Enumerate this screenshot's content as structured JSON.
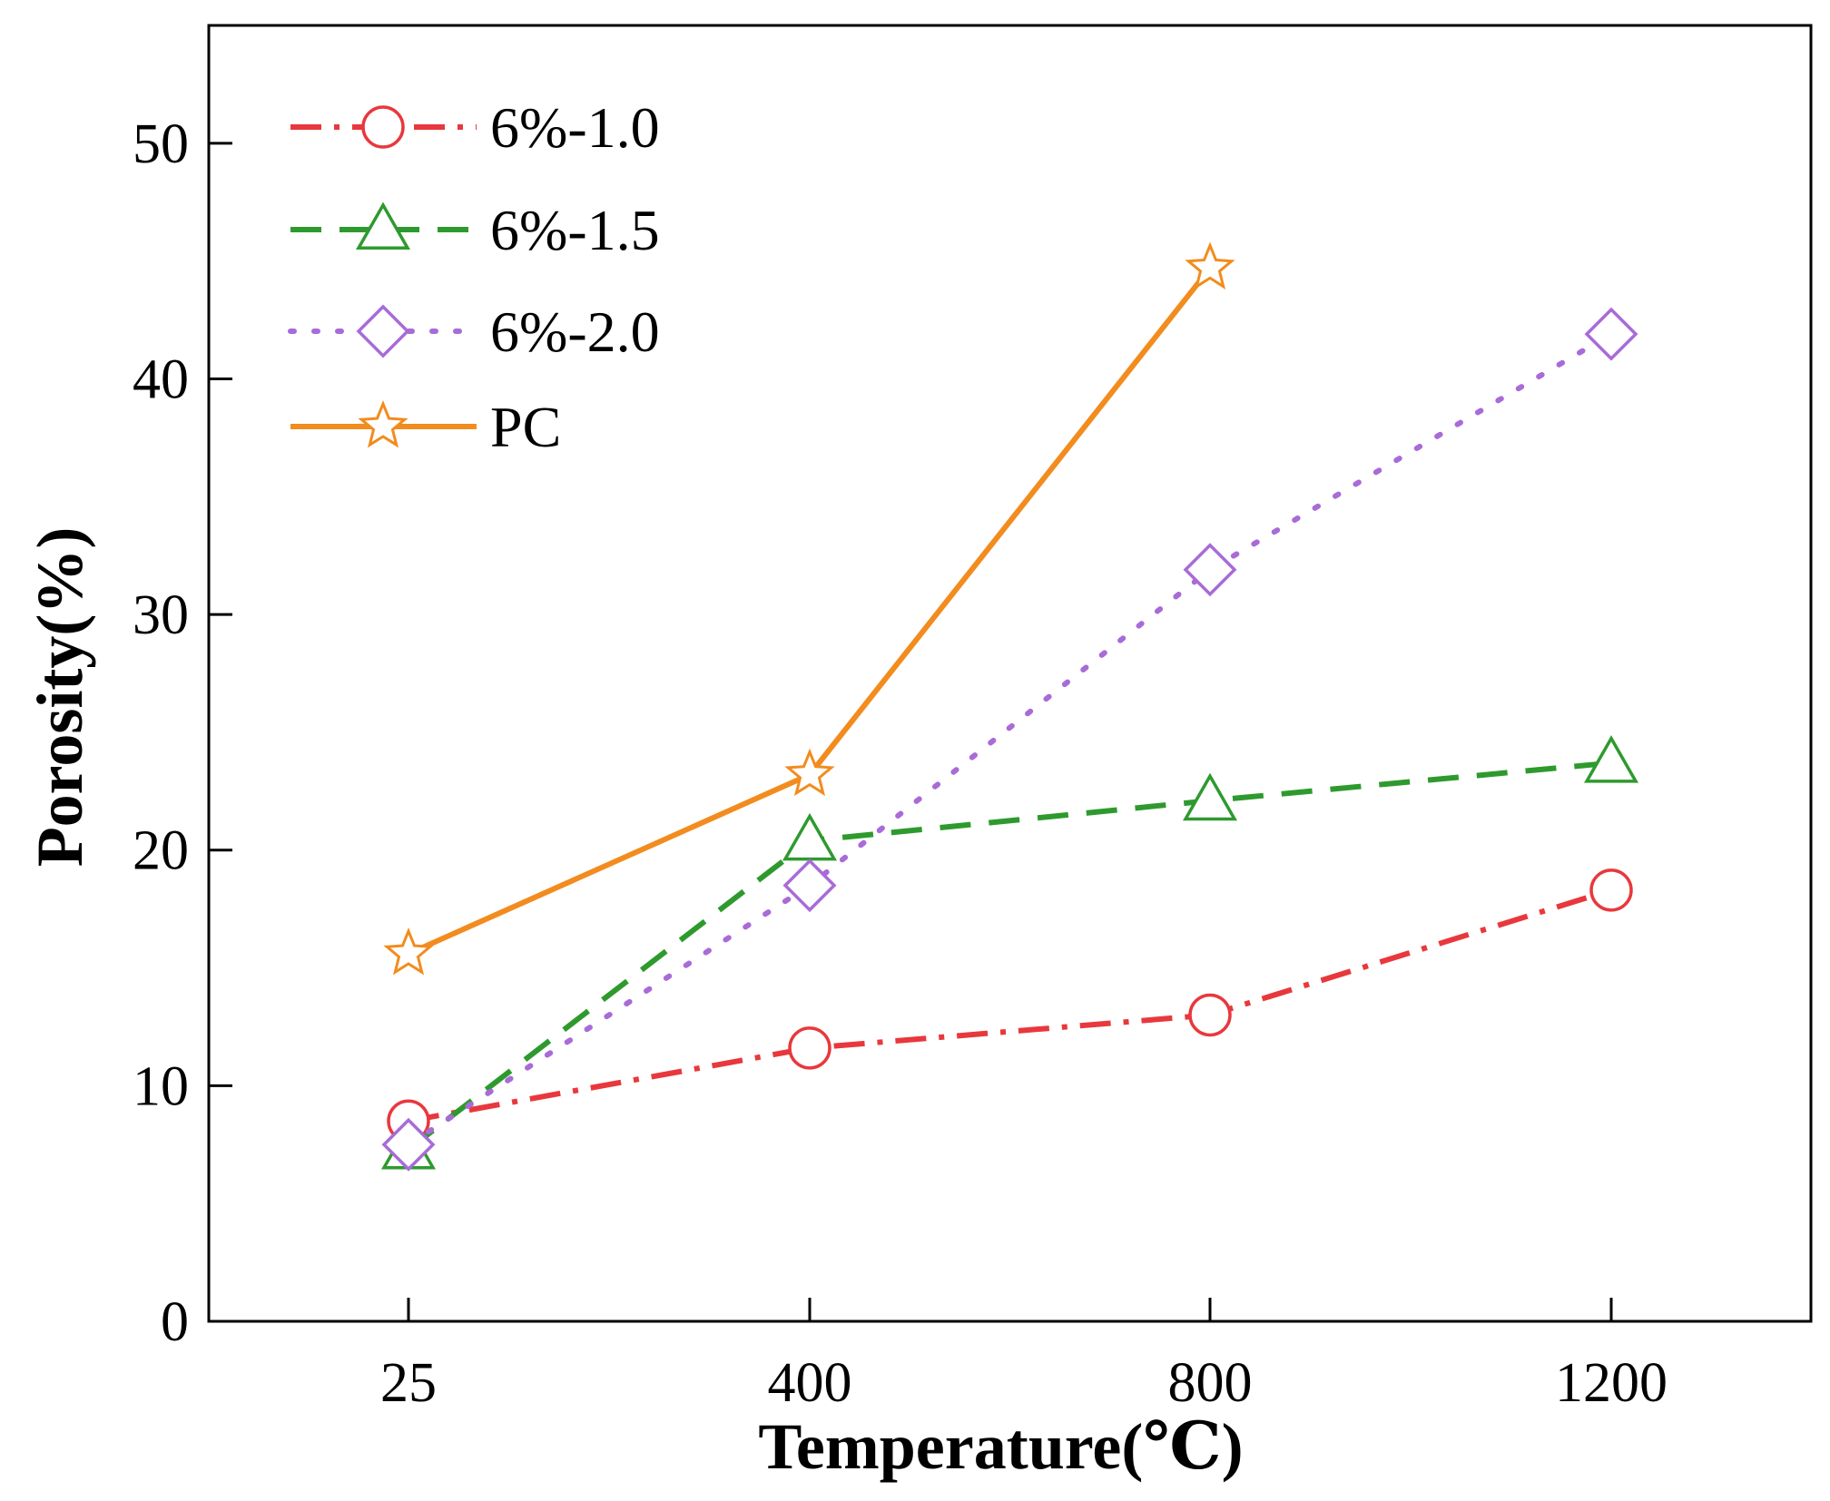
{
  "chart_data": {
    "type": "line",
    "title": "",
    "xlabel": "Temperature(℃)",
    "ylabel": "Porosity(%)",
    "categories": [
      "25",
      "400",
      "800",
      "1200"
    ],
    "ylim": [
      0,
      55
    ],
    "yticks": [
      0,
      10,
      20,
      30,
      40,
      50
    ],
    "ytick_labels": [
      "0",
      "10",
      "20",
      "30",
      "40",
      "50"
    ],
    "grid": false,
    "legend_position": "top-left",
    "series": [
      {
        "name": "6%-1.0",
        "color": "#e8383d",
        "marker": "circle",
        "line_style": "dashdot",
        "values": [
          8.5,
          11.6,
          13.0,
          18.3
        ]
      },
      {
        "name": "6%-1.5",
        "color": "#2e9a2e",
        "marker": "triangle",
        "line_style": "dashed",
        "values": [
          7.3,
          20.4,
          22.1,
          23.7
        ]
      },
      {
        "name": "6%-2.0",
        "color": "#a86bd8",
        "marker": "diamond",
        "line_style": "dotted",
        "values": [
          7.5,
          18.5,
          31.9,
          41.9
        ]
      },
      {
        "name": "PC",
        "color": "#f28c1e",
        "marker": "star",
        "line_style": "solid",
        "values": [
          15.6,
          23.2,
          44.7,
          null
        ]
      }
    ]
  }
}
